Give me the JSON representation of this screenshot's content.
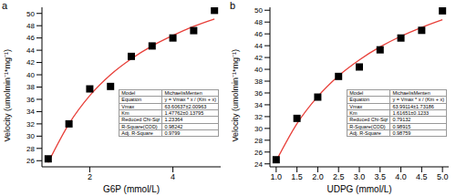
{
  "chart_data": [
    {
      "type": "scatter",
      "panel": "a",
      "x_label": "G6P (mmol/L)",
      "y_label": "Velocity (umolmin⁻¹*mg⁻¹)",
      "x": [
        1,
        1.5,
        2,
        2.5,
        3,
        3.5,
        4,
        4.5,
        5
      ],
      "series": [
        {
          "type": "scatter",
          "color": "#000000",
          "marker": "square",
          "values": [
            26.3,
            32.0,
            37.7,
            38.1,
            43.0,
            44.7,
            46.0,
            47.2,
            50.5
          ]
        },
        {
          "type": "line",
          "color": "#e8403a",
          "line_style": "solid",
          "values": [
            25.7,
            32.0,
            36.6,
            40.0,
            42.6,
            44.7,
            46.4,
            47.9,
            49.1
          ]
        }
      ],
      "xlim": [
        0.85,
        5.15
      ],
      "xticks": [
        2,
        4
      ],
      "ylim": [
        25,
        51
      ],
      "yticks": [
        26,
        28,
        30,
        32,
        34,
        36,
        38,
        40,
        42,
        44,
        46,
        48,
        50
      ],
      "grid": false,
      "fit_table": [
        [
          "Model",
          "MichaelisMenten"
        ],
        [
          "Equation",
          "y = Vmax * x / (Km + x)"
        ],
        [
          "Vmax",
          "63.60637±2.00963"
        ],
        [
          "Km",
          "1.47762±0.13795"
        ],
        [
          "Reduced Chi-Sqr",
          "1.23364"
        ],
        [
          "R-Square(COD)",
          "0.98242"
        ],
        [
          "Adj. R-Square",
          "0.9799"
        ]
      ]
    },
    {
      "type": "scatter",
      "panel": "b",
      "x_label": "UDPG (mmol/L)",
      "y_label": "Velocity (umolmin⁻¹*mg⁻¹)",
      "x": [
        1,
        1.5,
        2,
        2.5,
        3,
        3.5,
        4,
        4.5,
        5
      ],
      "series": [
        {
          "type": "scatter",
          "color": "#000000",
          "marker": "square",
          "values": [
            24.7,
            31.7,
            35.3,
            38.8,
            40.4,
            43.3,
            45.3,
            46.6,
            49.9
          ]
        },
        {
          "type": "line",
          "color": "#e8403a",
          "line_style": "solid",
          "values": [
            24.5,
            30.8,
            35.4,
            38.9,
            41.6,
            43.8,
            45.6,
            47.1,
            48.4
          ]
        }
      ],
      "xlim": [
        0.85,
        5.15
      ],
      "xticks": [
        {
          "value": 1,
          "label": "1.0"
        },
        {
          "value": 1.5,
          "label": "1.5"
        },
        {
          "value": 2,
          "label": "2.0"
        },
        {
          "value": 2.5,
          "label": "2.5"
        },
        {
          "value": 3,
          "label": "3.0"
        },
        {
          "value": 3.5,
          "label": "3.5"
        },
        {
          "value": 4,
          "label": "4.0"
        },
        {
          "value": 4.5,
          "label": "4.5"
        },
        {
          "value": 5,
          "label": "5.0"
        }
      ],
      "ylim": [
        23.5,
        50.5
      ],
      "yticks": [
        24,
        26,
        28,
        30,
        32,
        34,
        36,
        38,
        40,
        42,
        44,
        46,
        48,
        50
      ],
      "grid": false,
      "fit_table": [
        [
          "Model",
          "MichaelisMenten"
        ],
        [
          "Equation",
          "y = Vmax * x / (Km + x)"
        ],
        [
          "Vmax",
          "63.99114±1.73186"
        ],
        [
          "Km",
          "1.61651±0.1233"
        ],
        [
          "Reduced Chi-Sqr",
          "0.79132"
        ],
        [
          "R-Square(COD)",
          "0.98915"
        ],
        [
          "Adj. R-Square",
          "0.98759"
        ]
      ]
    }
  ]
}
